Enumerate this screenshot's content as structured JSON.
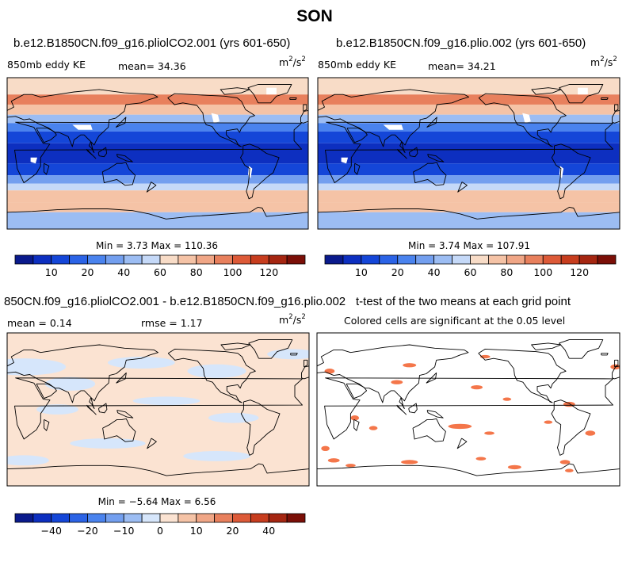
{
  "figure": {
    "title": "SON"
  },
  "chart_data": [
    {
      "type": "heatmap",
      "id": "panel-case1",
      "title": "b.e12.B1850CN.f09_g16.pliolCO2.001 (yrs 601-650)",
      "left_label": "850mb eddy KE",
      "center_label": "mean=  34.36",
      "mean": 34.36,
      "units": "m2/s2",
      "stats_label": "Min =   3.73 Max = 110.36",
      "min": 3.73,
      "max": 110.36,
      "projection": "cylindrical equidistant, 0-360E centered on Pacific",
      "colorbar": {
        "levels": [
          5,
          10,
          15,
          20,
          30,
          40,
          50,
          60,
          70,
          80,
          90,
          100,
          110,
          120,
          130
        ],
        "tick_labels": [
          "10",
          "20",
          "40",
          "60",
          "80",
          "100",
          "120"
        ],
        "tick_after_box": [
          1,
          3,
          5,
          7,
          9,
          11,
          13
        ],
        "colors": [
          "#0a1a8c",
          "#0d2fc0",
          "#1446d8",
          "#2b63e6",
          "#4a83ee",
          "#739fef",
          "#9cbdf3",
          "#c5d9f8",
          "#f8dcc7",
          "#f5c3a6",
          "#f0a686",
          "#e8805d",
          "#dd5a38",
          "#c73d1e",
          "#a52611",
          "#7b0f07"
        ]
      },
      "bands": [
        {
          "lat_top": 90,
          "lat_bottom": 70,
          "value": 65
        },
        {
          "lat_top": 70,
          "lat_bottom": 58,
          "value": 95
        },
        {
          "lat_top": 58,
          "lat_bottom": 46,
          "value": 72
        },
        {
          "lat_top": 46,
          "lat_bottom": 36,
          "value": 45
        },
        {
          "lat_top": 36,
          "lat_bottom": 26,
          "value": 25
        },
        {
          "lat_top": 26,
          "lat_bottom": 12,
          "value": 14
        },
        {
          "lat_top": 12,
          "lat_bottom": -12,
          "value": 8
        },
        {
          "lat_top": -12,
          "lat_bottom": -26,
          "value": 14
        },
        {
          "lat_top": -26,
          "lat_bottom": -36,
          "value": 35
        },
        {
          "lat_top": -36,
          "lat_bottom": -44,
          "value": 58
        },
        {
          "lat_top": -44,
          "lat_bottom": -58,
          "value": 78
        },
        {
          "lat_top": -58,
          "lat_bottom": -70,
          "value": 70
        },
        {
          "lat_top": -70,
          "lat_bottom": -90,
          "value": 45
        }
      ],
      "masked_regions": [
        "Tibetan Plateau",
        "Rocky Mountains",
        "Andes",
        "Greenland"
      ]
    },
    {
      "type": "heatmap",
      "id": "panel-case2",
      "title": "b.e12.B1850CN.f09_g16.plio.002 (yrs 601-650)",
      "left_label": "850mb eddy KE",
      "center_label": "mean=  34.21",
      "mean": 34.21,
      "units": "m2/s2",
      "stats_label": "Min =   3.74 Max = 107.91",
      "min": 3.74,
      "max": 107.91,
      "projection": "cylindrical equidistant, 0-360E centered on Pacific",
      "colorbar": {
        "levels": [
          5,
          10,
          15,
          20,
          30,
          40,
          50,
          60,
          70,
          80,
          90,
          100,
          110,
          120,
          130
        ],
        "tick_labels": [
          "10",
          "20",
          "40",
          "60",
          "80",
          "100",
          "120"
        ],
        "tick_after_box": [
          1,
          3,
          5,
          7,
          9,
          11,
          13
        ],
        "colors": [
          "#0a1a8c",
          "#0d2fc0",
          "#1446d8",
          "#2b63e6",
          "#4a83ee",
          "#739fef",
          "#9cbdf3",
          "#c5d9f8",
          "#f8dcc7",
          "#f5c3a6",
          "#f0a686",
          "#e8805d",
          "#dd5a38",
          "#c73d1e",
          "#a52611",
          "#7b0f07"
        ]
      },
      "bands": [
        {
          "lat_top": 90,
          "lat_bottom": 70,
          "value": 65
        },
        {
          "lat_top": 70,
          "lat_bottom": 58,
          "value": 92
        },
        {
          "lat_top": 58,
          "lat_bottom": 46,
          "value": 72
        },
        {
          "lat_top": 46,
          "lat_bottom": 36,
          "value": 45
        },
        {
          "lat_top": 36,
          "lat_bottom": 26,
          "value": 25
        },
        {
          "lat_top": 26,
          "lat_bottom": 12,
          "value": 14
        },
        {
          "lat_top": 12,
          "lat_bottom": -12,
          "value": 8
        },
        {
          "lat_top": -12,
          "lat_bottom": -26,
          "value": 14
        },
        {
          "lat_top": -26,
          "lat_bottom": -36,
          "value": 35
        },
        {
          "lat_top": -36,
          "lat_bottom": -44,
          "value": 58
        },
        {
          "lat_top": -44,
          "lat_bottom": -58,
          "value": 78
        },
        {
          "lat_top": -58,
          "lat_bottom": -70,
          "value": 70
        },
        {
          "lat_top": -70,
          "lat_bottom": -90,
          "value": 45
        }
      ],
      "masked_regions": [
        "Tibetan Plateau",
        "Rocky Mountains",
        "Andes",
        "Greenland"
      ]
    },
    {
      "type": "heatmap",
      "id": "panel-diff",
      "title": "850CN.f09_g16.pliolCO2.001 - b.e12.B1850CN.f09_g16.plio.002",
      "left_label": "mean =   0.14",
      "center_label": "rmse =   1.17",
      "mean": 0.14,
      "rmse": 1.17,
      "units": "m2/s2",
      "stats_label": "Min = −5.64 Max =   6.56",
      "min": -5.64,
      "max": 6.56,
      "colorbar": {
        "levels": [
          -50,
          -40,
          -30,
          -20,
          -15,
          -10,
          -5,
          0,
          5,
          10,
          15,
          20,
          30,
          40,
          50
        ],
        "tick_labels": [
          "−40",
          "−20",
          "−10",
          "0",
          "10",
          "20",
          "40"
        ],
        "tick_after_box": [
          1,
          3,
          5,
          7,
          9,
          11,
          13
        ],
        "colors": [
          "#0a1a8c",
          "#0d2fc0",
          "#1446d8",
          "#2b63e6",
          "#4a83ee",
          "#739fef",
          "#9cbdf3",
          "#d6e6fb",
          "#fbe3d2",
          "#f5c3a6",
          "#f0a686",
          "#e8805d",
          "#dd5a38",
          "#c73d1e",
          "#a52611",
          "#7b0f07"
        ]
      },
      "base_value": 2,
      "patches": [
        {
          "lon": 20,
          "lat": 50,
          "rx": 50,
          "ry": 10,
          "value": -3
        },
        {
          "lon": 75,
          "lat": 30,
          "rx": 30,
          "ry": 8,
          "value": -3
        },
        {
          "lon": 160,
          "lat": 55,
          "rx": 40,
          "ry": 7,
          "value": -3
        },
        {
          "lon": 250,
          "lat": 45,
          "rx": 35,
          "ry": 8,
          "value": -3
        },
        {
          "lon": 340,
          "lat": 65,
          "rx": 30,
          "ry": 6,
          "value": -3
        },
        {
          "lon": 60,
          "lat": 0,
          "rx": 25,
          "ry": 6,
          "value": -3
        },
        {
          "lon": 270,
          "lat": -10,
          "rx": 30,
          "ry": 6,
          "value": -3
        },
        {
          "lon": 120,
          "lat": -40,
          "rx": 45,
          "ry": 6,
          "value": -3
        },
        {
          "lon": 250,
          "lat": -55,
          "rx": 40,
          "ry": 6,
          "value": -3
        },
        {
          "lon": 20,
          "lat": -60,
          "rx": 30,
          "ry": 6,
          "value": -3
        },
        {
          "lon": 190,
          "lat": 10,
          "rx": 40,
          "ry": 5,
          "value": -3
        }
      ]
    },
    {
      "type": "heatmap",
      "id": "panel-ttest",
      "title": "t-test of the two means at each grid point",
      "subtitle": "Colored cells are significant at the 0.05 level",
      "significant_color": "#f4764a",
      "cells": [
        {
          "lon": 15,
          "lat": 45,
          "rx": 6,
          "ry": 3
        },
        {
          "lon": 95,
          "lat": 32,
          "rx": 7,
          "ry": 2.5
        },
        {
          "lon": 190,
          "lat": 26,
          "rx": 7,
          "ry": 2.5
        },
        {
          "lon": 226,
          "lat": 12,
          "rx": 5,
          "ry": 2
        },
        {
          "lon": 300,
          "lat": 6,
          "rx": 7,
          "ry": 3
        },
        {
          "lon": 355,
          "lat": 50,
          "rx": 6,
          "ry": 3
        },
        {
          "lon": 110,
          "lat": 52,
          "rx": 8,
          "ry": 2.5
        },
        {
          "lon": 200,
          "lat": 62,
          "rx": 6,
          "ry": 2
        },
        {
          "lon": 45,
          "lat": -10,
          "rx": 5,
          "ry": 3
        },
        {
          "lon": 67,
          "lat": -22,
          "rx": 5,
          "ry": 2.5
        },
        {
          "lon": 170,
          "lat": -20,
          "rx": 14,
          "ry": 3
        },
        {
          "lon": 205,
          "lat": -28,
          "rx": 6,
          "ry": 2
        },
        {
          "lon": 275,
          "lat": -15,
          "rx": 5,
          "ry": 2
        },
        {
          "lon": 325,
          "lat": -28,
          "rx": 6,
          "ry": 3
        },
        {
          "lon": 10,
          "lat": -46,
          "rx": 5,
          "ry": 3
        },
        {
          "lon": 20,
          "lat": -60,
          "rx": 7,
          "ry": 2.5
        },
        {
          "lon": 40,
          "lat": -66,
          "rx": 6,
          "ry": 2
        },
        {
          "lon": 110,
          "lat": -62,
          "rx": 10,
          "ry": 2.5
        },
        {
          "lon": 195,
          "lat": -58,
          "rx": 6,
          "ry": 2
        },
        {
          "lon": 235,
          "lat": -68,
          "rx": 8,
          "ry": 2.5
        },
        {
          "lon": 295,
          "lat": -62,
          "rx": 6,
          "ry": 2.5
        },
        {
          "lon": 300,
          "lat": -72,
          "rx": 5,
          "ry": 2
        }
      ]
    }
  ]
}
